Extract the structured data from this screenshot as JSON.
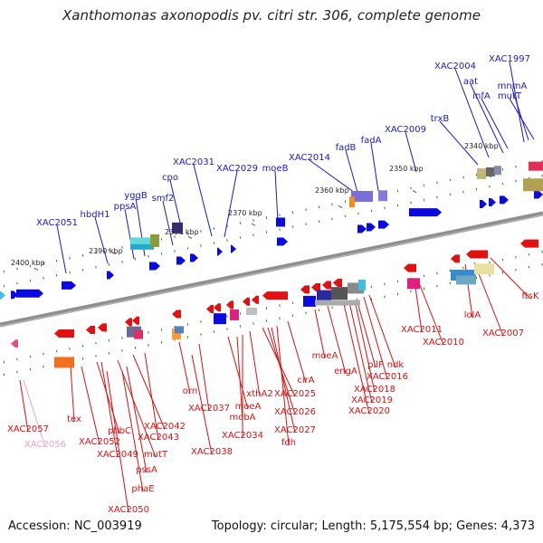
{
  "title": "Xanthomonas axonopodis pv. citri str. 306, complete genome",
  "footer": {
    "accession": "Accession: NC_003919",
    "topology": "Topology: circular; Length: 5,175,554 bp; Genes: 4,373"
  },
  "colors": {
    "upper_label": "#1a1acc",
    "lower_label": "#dd1111",
    "faded_label": "#f2a0c8",
    "backbone": "#8f8f8f",
    "tick": "#1c8a1c"
  },
  "scale_labels": [
    "2400 kbp",
    "2390 kbp",
    "2380 kbp",
    "2370 kbp",
    "2360 kbp",
    "2350 kbp",
    "2340 kbp"
  ],
  "upper_labels": [
    "XAC2051",
    "hbdH1",
    "ppsA",
    "yggB",
    "smf2",
    "cpo",
    "XAC2031",
    "XAC2029",
    "moeB",
    "XAC2014",
    "fadB",
    "fadA",
    "XAC2009",
    "trxB",
    "XAC2004",
    "aat",
    "infA",
    "XAC1997",
    "mnmA",
    "mutT"
  ],
  "lower_labels": [
    "XAC2057",
    "XAC2056",
    "tex",
    "XAC2052",
    "phbC",
    "XAC2049",
    "mutT",
    "XAC2042",
    "XAC2043",
    "pssA",
    "phaE",
    "XAC2050",
    "orn",
    "XAC2038",
    "XAC2037",
    "moeA",
    "mobA",
    "XAC2034",
    "xthA2",
    "XAC2025",
    "XAC2026",
    "XAC2027",
    "fdh",
    "cirA",
    "moeA",
    "engA",
    "pilF",
    "ndk",
    "XAC2016",
    "XAC2018",
    "XAC2019",
    "XAC2020",
    "XAC2011",
    "XAC2010",
    "lolA",
    "XAC2007",
    "ftsK"
  ]
}
